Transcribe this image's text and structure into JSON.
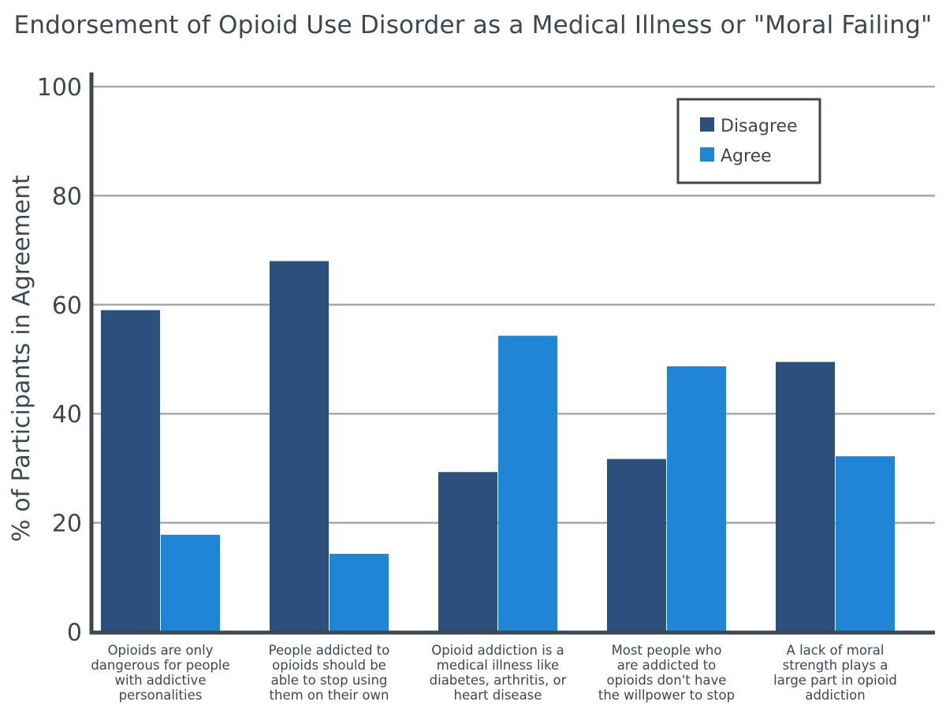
{
  "chart_data": {
    "type": "bar",
    "title": "Endorsement of Opioid Use Disorder as a Medical Illness or \"Moral Failing\"",
    "ylabel": "% of Participants in Agreement",
    "xlabel": "",
    "ylim": [
      0,
      100
    ],
    "yticks": [
      0,
      20,
      40,
      60,
      80,
      100
    ],
    "grid": true,
    "legend_position": "top-right",
    "categories": [
      [
        "Opioids are only",
        "dangerous for people",
        "with addictive",
        "personalities"
      ],
      [
        "People addicted to",
        "opioids should be",
        "able to stop using",
        "them on their own"
      ],
      [
        "Opioid addiction is a",
        "medical illness like",
        "diabetes, arthritis, or",
        "heart disease"
      ],
      [
        "Most people who",
        "are addicted to",
        "opioids don't have",
        "the willpower to stop"
      ],
      [
        "A lack of moral",
        "strength plays a",
        "large part in opioid",
        "addiction"
      ]
    ],
    "series": [
      {
        "name": "Disagree",
        "color": "#2c4f7c",
        "values": [
          59,
          68,
          29.3,
          31.7,
          49.5
        ]
      },
      {
        "name": "Agree",
        "color": "#2185d5",
        "values": [
          17.8,
          14.3,
          54.3,
          48.7,
          32.2
        ]
      }
    ],
    "colors": {
      "axis": "#3d4750",
      "grid": "#a8a8a8",
      "text": "#3d4750"
    }
  }
}
